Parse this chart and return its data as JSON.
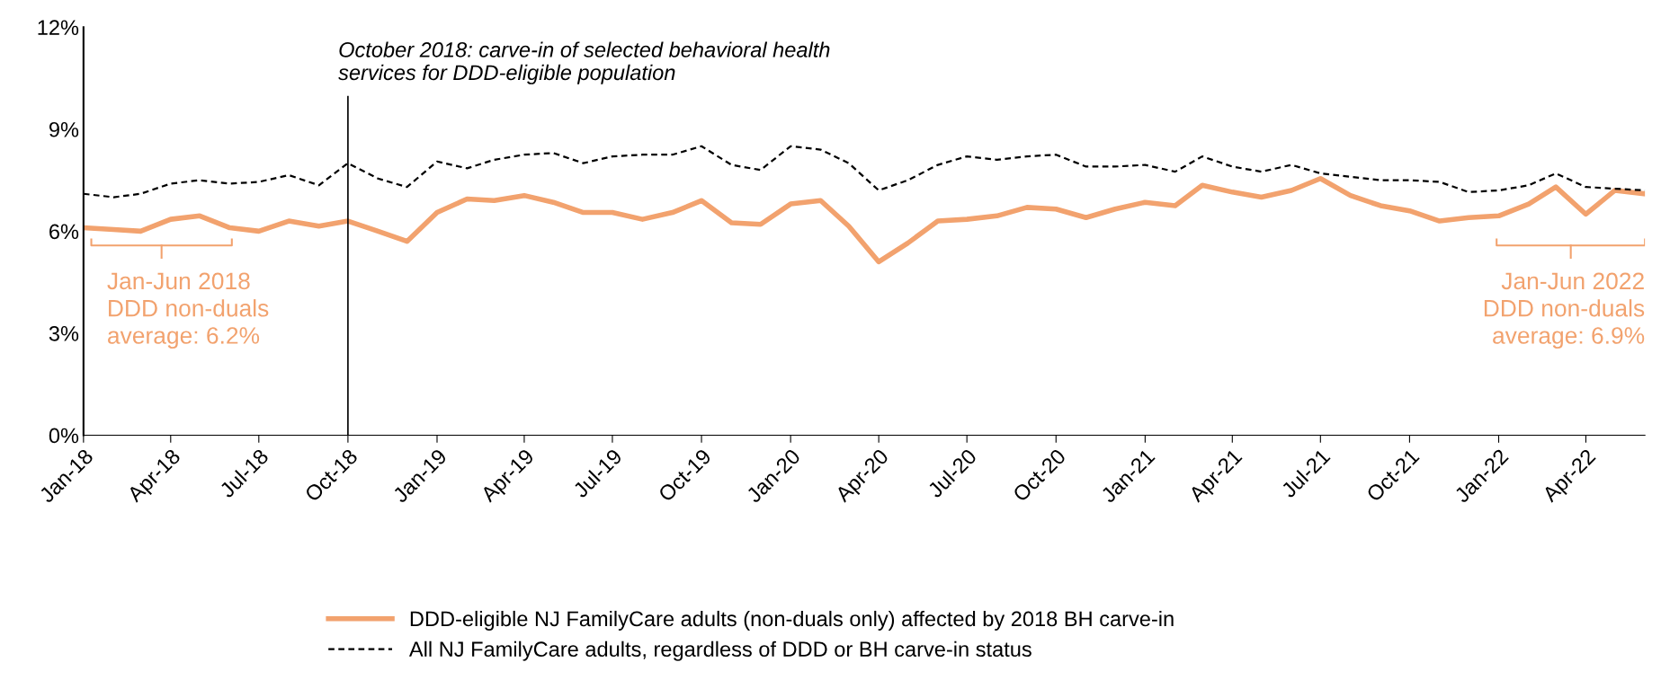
{
  "chart_data": {
    "type": "line",
    "x": [
      "2018-01",
      "2018-02",
      "2018-03",
      "2018-04",
      "2018-05",
      "2018-06",
      "2018-07",
      "2018-08",
      "2018-09",
      "2018-10",
      "2018-11",
      "2018-12",
      "2019-01",
      "2019-02",
      "2019-03",
      "2019-04",
      "2019-05",
      "2019-06",
      "2019-07",
      "2019-08",
      "2019-09",
      "2019-10",
      "2019-11",
      "2019-12",
      "2020-01",
      "2020-02",
      "2020-03",
      "2020-04",
      "2020-05",
      "2020-06",
      "2020-07",
      "2020-08",
      "2020-09",
      "2020-10",
      "2020-11",
      "2020-12",
      "2021-01",
      "2021-02",
      "2021-03",
      "2021-04",
      "2021-05",
      "2021-06",
      "2021-07",
      "2021-08",
      "2021-09",
      "2021-10",
      "2021-11",
      "2021-12",
      "2022-01",
      "2022-02",
      "2022-03",
      "2022-04",
      "2022-05",
      "2022-06"
    ],
    "series": [
      {
        "name": "DDD-eligible NJ FamilyCare adults (non-duals only) affected by 2018 BH carve-in",
        "color": "#f2a26e",
        "line_style": "solid",
        "values": [
          6.1,
          6.05,
          6.0,
          6.35,
          6.45,
          6.1,
          6.0,
          6.3,
          6.15,
          6.3,
          6.0,
          5.7,
          6.55,
          6.95,
          6.9,
          7.05,
          6.85,
          6.55,
          6.55,
          6.35,
          6.55,
          6.9,
          6.25,
          6.2,
          6.8,
          6.9,
          6.15,
          5.1,
          5.65,
          6.3,
          6.35,
          6.45,
          6.7,
          6.65,
          6.4,
          6.65,
          6.85,
          6.75,
          7.35,
          7.15,
          7.0,
          7.2,
          7.55,
          7.05,
          6.75,
          6.6,
          6.3,
          6.4,
          6.45,
          6.8,
          7.3,
          6.5,
          7.2,
          7.1
        ]
      },
      {
        "name": "All NJ FamilyCare adults, regardless of DDD or BH carve-in status",
        "color": "#000000",
        "line_style": "dashed",
        "values": [
          7.1,
          7.0,
          7.1,
          7.4,
          7.5,
          7.4,
          7.45,
          7.65,
          7.35,
          8.0,
          7.55,
          7.3,
          8.05,
          7.85,
          8.1,
          8.25,
          8.3,
          8.0,
          8.2,
          8.25,
          8.25,
          8.5,
          7.95,
          7.8,
          8.5,
          8.4,
          8.0,
          7.2,
          7.5,
          7.95,
          8.2,
          8.1,
          8.2,
          8.25,
          7.9,
          7.9,
          7.95,
          7.75,
          8.2,
          7.9,
          7.75,
          7.95,
          7.7,
          7.6,
          7.5,
          7.5,
          7.45,
          7.15,
          7.2,
          7.35,
          7.7,
          7.3,
          7.25,
          7.2
        ]
      }
    ],
    "xlim": [
      "2018-01",
      "2022-06"
    ],
    "xticks": [
      {
        "value": "2018-01",
        "label": "Jan-18"
      },
      {
        "value": "2018-04",
        "label": "Apr-18"
      },
      {
        "value": "2018-07",
        "label": "Jul-18"
      },
      {
        "value": "2018-10",
        "label": "Oct-18"
      },
      {
        "value": "2019-01",
        "label": "Jan-19"
      },
      {
        "value": "2019-04",
        "label": "Apr-19"
      },
      {
        "value": "2019-07",
        "label": "Jul-19"
      },
      {
        "value": "2019-10",
        "label": "Oct-19"
      },
      {
        "value": "2020-01",
        "label": "Jan-20"
      },
      {
        "value": "2020-04",
        "label": "Apr-20"
      },
      {
        "value": "2020-07",
        "label": "Jul-20"
      },
      {
        "value": "2020-10",
        "label": "Oct-20"
      },
      {
        "value": "2021-01",
        "label": "Jan-21"
      },
      {
        "value": "2021-04",
        "label": "Apr-21"
      },
      {
        "value": "2021-07",
        "label": "Jul-21"
      },
      {
        "value": "2021-10",
        "label": "Oct-21"
      },
      {
        "value": "2022-01",
        "label": "Jan-22"
      },
      {
        "value": "2022-04",
        "label": "Apr-22"
      }
    ],
    "ylim": [
      0,
      12
    ],
    "yticks": [
      {
        "value": 0,
        "label": "0%"
      },
      {
        "value": 3,
        "label": "3%"
      },
      {
        "value": 6,
        "label": "6%"
      },
      {
        "value": 9,
        "label": "9%"
      },
      {
        "value": 12,
        "label": "12%"
      }
    ],
    "grid": false,
    "legend": "bottom",
    "marker": "none",
    "ref_lines": [
      {
        "axis": "x",
        "value": "2018-10",
        "label": "October 2018: carve-in of selected behavioral health\nservices for DDD-eligible population",
        "color": "#000000",
        "line_style": "solid"
      }
    ],
    "annotations": [
      "Jan-Jun 2018\nDDD non-duals\naverage: 6.2%",
      "Jan-Jun 2022\nDDD non-duals\naverage: 6.9%"
    ]
  }
}
